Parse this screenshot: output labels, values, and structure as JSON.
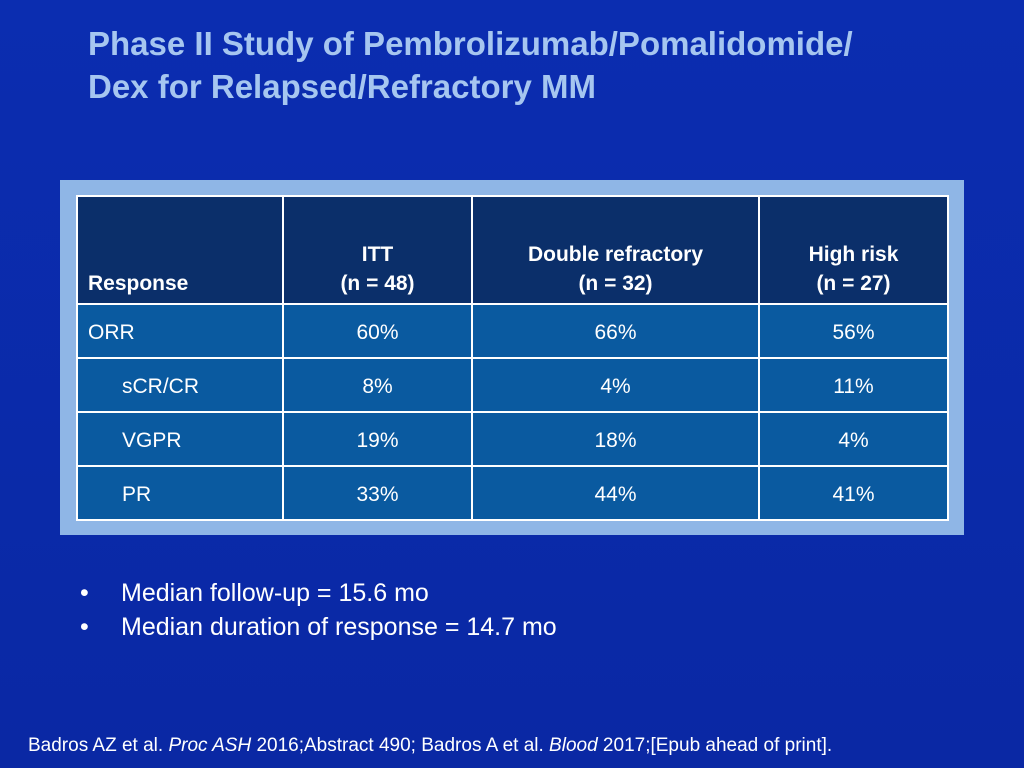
{
  "title": {
    "line1": "Phase II Study of Pembrolizumab/Pomalidomide/",
    "line2": "Dex for Relapsed/Refractory MM"
  },
  "table": {
    "headers": [
      {
        "line1": "",
        "line2": "Response"
      },
      {
        "line1": "ITT",
        "line2": "(n = 48)"
      },
      {
        "line1": "Double refractory",
        "line2": "(n = 32)"
      },
      {
        "line1": "High risk",
        "line2": "(n = 27)"
      }
    ],
    "rows": [
      {
        "label": "ORR",
        "values": [
          "60%",
          "66%",
          "56%"
        ]
      },
      {
        "label": "sCR/CR",
        "values": [
          "8%",
          "4%",
          "11%"
        ]
      },
      {
        "label": "VGPR",
        "values": [
          "19%",
          "18%",
          "4%"
        ]
      },
      {
        "label": "PR",
        "values": [
          "33%",
          "44%",
          "41%"
        ]
      }
    ]
  },
  "bullets": [
    "Median follow-up = 15.6 mo",
    "Median duration of response = 14.7 mo"
  ],
  "bullet_char": "•",
  "citation": {
    "part1": "Badros AZ et al. ",
    "journal1": "Proc ASH",
    "part2": " 2016;Abstract 490; Badros A et al. ",
    "journal2": "Blood",
    "part3": " 2017;[Epub ahead of print]."
  },
  "colors": {
    "background": "#0a2aa8",
    "title": "#a6c6f0",
    "table_frame": "#8fb6e6",
    "header_cell": "#0b2f6a",
    "body_cell": "#0a5aa0"
  }
}
